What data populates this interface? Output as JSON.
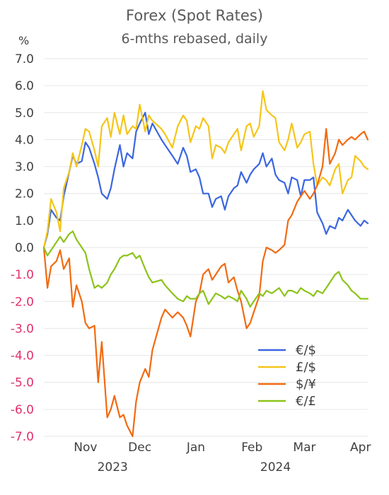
{
  "chart_data": {
    "type": "line",
    "title": "Forex (Spot Rates)",
    "subtitle": "6-mths rebased, daily",
    "y_unit": "%",
    "ylim": [
      -7.0,
      7.0
    ],
    "y_ticks": [
      "7.0",
      "6.0",
      "5.0",
      "4.0",
      "3.0",
      "2.0",
      "1.0",
      "0.0",
      "-1.0",
      "-2.0",
      "-3.0",
      "-4.0",
      "-5.0",
      "-6.0",
      "-7.0"
    ],
    "x_tick_labels": [
      "Nov",
      "Dec",
      "Jan",
      "Feb",
      "Mar",
      "Apr"
    ],
    "x_year_labels": [
      "2023",
      "2024"
    ],
    "grid": "horizontal",
    "legend_position": "bottom-right",
    "colors": {
      "negative_tick": "#e0306a",
      "positive_tick": "#404040"
    },
    "series": [
      {
        "name": "€/$",
        "color": "#3a66e0",
        "x": [
          "2023-10-23",
          "2023-10-25",
          "2023-10-27",
          "2023-10-30",
          "2023-11-01",
          "2023-11-03",
          "2023-11-06",
          "2023-11-08",
          "2023-11-10",
          "2023-11-13",
          "2023-11-15",
          "2023-11-17",
          "2023-11-20",
          "2023-11-22",
          "2023-11-24",
          "2023-11-27",
          "2023-11-29",
          "2023-12-01",
          "2023-12-04",
          "2023-12-06",
          "2023-12-08",
          "2023-12-11",
          "2023-12-13",
          "2023-12-15",
          "2023-12-18",
          "2023-12-20",
          "2023-12-22",
          "2023-12-27",
          "2023-12-29",
          "2024-01-02",
          "2024-01-05",
          "2024-01-08",
          "2024-01-10",
          "2024-01-12",
          "2024-01-15",
          "2024-01-17",
          "2024-01-19",
          "2024-01-22",
          "2024-01-24",
          "2024-01-26",
          "2024-01-29",
          "2024-01-31",
          "2024-02-02",
          "2024-02-05",
          "2024-02-07",
          "2024-02-09",
          "2024-02-12",
          "2024-02-14",
          "2024-02-16",
          "2024-02-19",
          "2024-02-21",
          "2024-02-23",
          "2024-02-26",
          "2024-02-28",
          "2024-03-01",
          "2024-03-04",
          "2024-03-06",
          "2024-03-08",
          "2024-03-11",
          "2024-03-13",
          "2024-03-15",
          "2024-03-18",
          "2024-03-20",
          "2024-03-22",
          "2024-03-25",
          "2024-03-27",
          "2024-03-29",
          "2024-04-01",
          "2024-04-03",
          "2024-04-05",
          "2024-04-08",
          "2024-04-10",
          "2024-04-12",
          "2024-04-15",
          "2024-04-17",
          "2024-04-19"
        ],
        "values": [
          0.0,
          0.5,
          1.4,
          1.1,
          1.0,
          1.9,
          2.8,
          3.4,
          3.1,
          3.2,
          3.9,
          3.7,
          3.1,
          2.6,
          2.0,
          1.8,
          2.2,
          2.9,
          3.8,
          3.0,
          3.5,
          3.3,
          4.3,
          4.6,
          5.0,
          4.2,
          4.6,
          4.0,
          3.8,
          3.4,
          3.1,
          3.7,
          3.4,
          2.8,
          2.9,
          2.6,
          2.0,
          2.0,
          1.5,
          1.8,
          1.9,
          1.4,
          1.9,
          2.2,
          2.3,
          2.8,
          2.4,
          2.7,
          2.9,
          3.1,
          3.5,
          3.0,
          3.3,
          2.7,
          2.5,
          2.4,
          2.0,
          2.6,
          2.5,
          1.9,
          2.5,
          2.5,
          2.6,
          1.3,
          0.9,
          0.5,
          0.8,
          0.7,
          1.1,
          1.0,
          1.4,
          1.2,
          1.0,
          0.8,
          1.0,
          0.9
        ]
      },
      {
        "name": "£/$",
        "color": "#f5c518",
        "x": [
          "2023-10-23",
          "2023-10-25",
          "2023-10-27",
          "2023-10-30",
          "2023-11-01",
          "2023-11-03",
          "2023-11-06",
          "2023-11-08",
          "2023-11-10",
          "2023-11-13",
          "2023-11-15",
          "2023-11-17",
          "2023-11-20",
          "2023-11-22",
          "2023-11-24",
          "2023-11-27",
          "2023-11-29",
          "2023-12-01",
          "2023-12-04",
          "2023-12-06",
          "2023-12-08",
          "2023-12-11",
          "2023-12-13",
          "2023-12-15",
          "2023-12-18",
          "2023-12-20",
          "2023-12-22",
          "2023-12-27",
          "2023-12-29",
          "2024-01-02",
          "2024-01-05",
          "2024-01-08",
          "2024-01-10",
          "2024-01-12",
          "2024-01-15",
          "2024-01-17",
          "2024-01-19",
          "2024-01-22",
          "2024-01-24",
          "2024-01-26",
          "2024-01-29",
          "2024-01-31",
          "2024-02-02",
          "2024-02-05",
          "2024-02-07",
          "2024-02-09",
          "2024-02-12",
          "2024-02-14",
          "2024-02-16",
          "2024-02-19",
          "2024-02-21",
          "2024-02-23",
          "2024-02-26",
          "2024-02-28",
          "2024-03-01",
          "2024-03-04",
          "2024-03-06",
          "2024-03-08",
          "2024-03-11",
          "2024-03-13",
          "2024-03-15",
          "2024-03-18",
          "2024-03-20",
          "2024-03-22",
          "2024-03-25",
          "2024-03-27",
          "2024-03-29",
          "2024-04-01",
          "2024-04-03",
          "2024-04-05",
          "2024-04-08",
          "2024-04-10",
          "2024-04-12",
          "2024-04-15",
          "2024-04-17",
          "2024-04-19"
        ],
        "values": [
          0.0,
          0.6,
          1.8,
          1.3,
          0.6,
          2.2,
          2.8,
          3.5,
          3.0,
          3.8,
          4.4,
          4.3,
          3.6,
          3.0,
          4.5,
          4.8,
          4.1,
          5.0,
          4.2,
          4.9,
          4.2,
          4.5,
          4.4,
          5.3,
          4.3,
          4.9,
          4.7,
          4.4,
          4.2,
          3.7,
          4.5,
          4.9,
          4.7,
          3.9,
          4.5,
          4.4,
          4.8,
          4.5,
          3.3,
          3.8,
          3.7,
          3.5,
          3.9,
          4.2,
          4.4,
          3.6,
          4.5,
          4.6,
          4.1,
          4.5,
          5.8,
          5.1,
          4.9,
          4.8,
          3.9,
          3.6,
          4.0,
          4.6,
          3.7,
          3.9,
          4.2,
          4.3,
          3.1,
          2.3,
          2.6,
          2.5,
          2.3,
          2.9,
          3.1,
          2.0,
          2.5,
          2.6,
          3.4,
          3.2,
          3.0,
          2.9
        ]
      },
      {
        "name": "$/¥",
        "color": "#f26a10",
        "x": [
          "2023-10-23",
          "2023-10-25",
          "2023-10-27",
          "2023-10-30",
          "2023-11-01",
          "2023-11-03",
          "2023-11-06",
          "2023-11-08",
          "2023-11-10",
          "2023-11-13",
          "2023-11-15",
          "2023-11-17",
          "2023-11-20",
          "2023-11-22",
          "2023-11-24",
          "2023-11-27",
          "2023-11-29",
          "2023-12-01",
          "2023-12-04",
          "2023-12-06",
          "2023-12-08",
          "2023-12-11",
          "2023-12-13",
          "2023-12-15",
          "2023-12-18",
          "2023-12-20",
          "2023-12-22",
          "2023-12-27",
          "2023-12-29",
          "2024-01-02",
          "2024-01-05",
          "2024-01-08",
          "2024-01-10",
          "2024-01-12",
          "2024-01-15",
          "2024-01-17",
          "2024-01-19",
          "2024-01-22",
          "2024-01-24",
          "2024-01-26",
          "2024-01-29",
          "2024-01-31",
          "2024-02-02",
          "2024-02-05",
          "2024-02-07",
          "2024-02-09",
          "2024-02-12",
          "2024-02-14",
          "2024-02-16",
          "2024-02-19",
          "2024-02-21",
          "2024-02-23",
          "2024-02-26",
          "2024-02-28",
          "2024-03-01",
          "2024-03-04",
          "2024-03-06",
          "2024-03-08",
          "2024-03-11",
          "2024-03-13",
          "2024-03-15",
          "2024-03-18",
          "2024-03-20",
          "2024-03-22",
          "2024-03-25",
          "2024-03-27",
          "2024-03-29",
          "2024-04-01",
          "2024-04-03",
          "2024-04-05",
          "2024-04-08",
          "2024-04-10",
          "2024-04-12",
          "2024-04-15",
          "2024-04-17",
          "2024-04-19"
        ],
        "values": [
          0.0,
          -1.5,
          -0.7,
          -0.5,
          -0.1,
          -0.8,
          -0.4,
          -2.2,
          -1.4,
          -2.0,
          -2.8,
          -3.0,
          -2.9,
          -5.0,
          -3.5,
          -6.3,
          -6.0,
          -5.5,
          -6.3,
          -6.2,
          -6.6,
          -7.0,
          -5.7,
          -5.0,
          -4.5,
          -4.8,
          -3.8,
          -2.6,
          -2.3,
          -2.6,
          -2.4,
          -2.6,
          -2.9,
          -3.3,
          -2.0,
          -1.7,
          -1.0,
          -0.8,
          -1.2,
          -1.0,
          -0.7,
          -0.6,
          -1.3,
          -1.1,
          -1.6,
          -2.0,
          -3.0,
          -2.8,
          -2.4,
          -1.8,
          -0.5,
          0.0,
          -0.1,
          -0.2,
          -0.1,
          0.1,
          1.0,
          1.2,
          1.7,
          1.9,
          2.1,
          1.8,
          2.0,
          2.3,
          3.0,
          4.4,
          3.1,
          3.5,
          4.0,
          3.8,
          4.0,
          4.1,
          4.0,
          4.2,
          4.3,
          4.0
        ]
      },
      {
        "name": "€/£",
        "color": "#8cc31a",
        "x": [
          "2023-10-23",
          "2023-10-25",
          "2023-10-27",
          "2023-10-30",
          "2023-11-01",
          "2023-11-03",
          "2023-11-06",
          "2023-11-08",
          "2023-11-10",
          "2023-11-13",
          "2023-11-15",
          "2023-11-17",
          "2023-11-20",
          "2023-11-22",
          "2023-11-24",
          "2023-11-27",
          "2023-11-29",
          "2023-12-01",
          "2023-12-04",
          "2023-12-06",
          "2023-12-08",
          "2023-12-11",
          "2023-12-13",
          "2023-12-15",
          "2023-12-18",
          "2023-12-20",
          "2023-12-22",
          "2023-12-27",
          "2023-12-29",
          "2024-01-02",
          "2024-01-05",
          "2024-01-08",
          "2024-01-10",
          "2024-01-12",
          "2024-01-15",
          "2024-01-17",
          "2024-01-19",
          "2024-01-22",
          "2024-01-24",
          "2024-01-26",
          "2024-01-29",
          "2024-01-31",
          "2024-02-02",
          "2024-02-05",
          "2024-02-07",
          "2024-02-09",
          "2024-02-12",
          "2024-02-14",
          "2024-02-16",
          "2024-02-19",
          "2024-02-21",
          "2024-02-23",
          "2024-02-26",
          "2024-02-28",
          "2024-03-01",
          "2024-03-04",
          "2024-03-06",
          "2024-03-08",
          "2024-03-11",
          "2024-03-13",
          "2024-03-15",
          "2024-03-18",
          "2024-03-20",
          "2024-03-22",
          "2024-03-25",
          "2024-03-27",
          "2024-03-29",
          "2024-04-01",
          "2024-04-03",
          "2024-04-05",
          "2024-04-08",
          "2024-04-10",
          "2024-04-12",
          "2024-04-15",
          "2024-04-17",
          "2024-04-19"
        ],
        "values": [
          0.0,
          -0.3,
          -0.1,
          0.2,
          0.4,
          0.2,
          0.5,
          0.6,
          0.3,
          0.0,
          -0.2,
          -0.8,
          -1.5,
          -1.4,
          -1.5,
          -1.3,
          -1.0,
          -0.8,
          -0.4,
          -0.3,
          -0.3,
          -0.2,
          -0.4,
          -0.3,
          -0.8,
          -1.1,
          -1.3,
          -1.2,
          -1.4,
          -1.7,
          -1.9,
          -2.0,
          -1.8,
          -1.9,
          -1.9,
          -1.7,
          -1.6,
          -2.1,
          -1.9,
          -1.7,
          -1.8,
          -1.9,
          -1.8,
          -1.9,
          -2.0,
          -1.6,
          -1.9,
          -2.2,
          -2.0,
          -1.7,
          -1.8,
          -1.6,
          -1.7,
          -1.6,
          -1.5,
          -1.8,
          -1.6,
          -1.6,
          -1.7,
          -1.5,
          -1.6,
          -1.7,
          -1.8,
          -1.6,
          -1.7,
          -1.5,
          -1.3,
          -1.0,
          -0.9,
          -1.2,
          -1.4,
          -1.6,
          -1.7,
          -1.9,
          -1.9,
          -1.9
        ]
      }
    ]
  }
}
